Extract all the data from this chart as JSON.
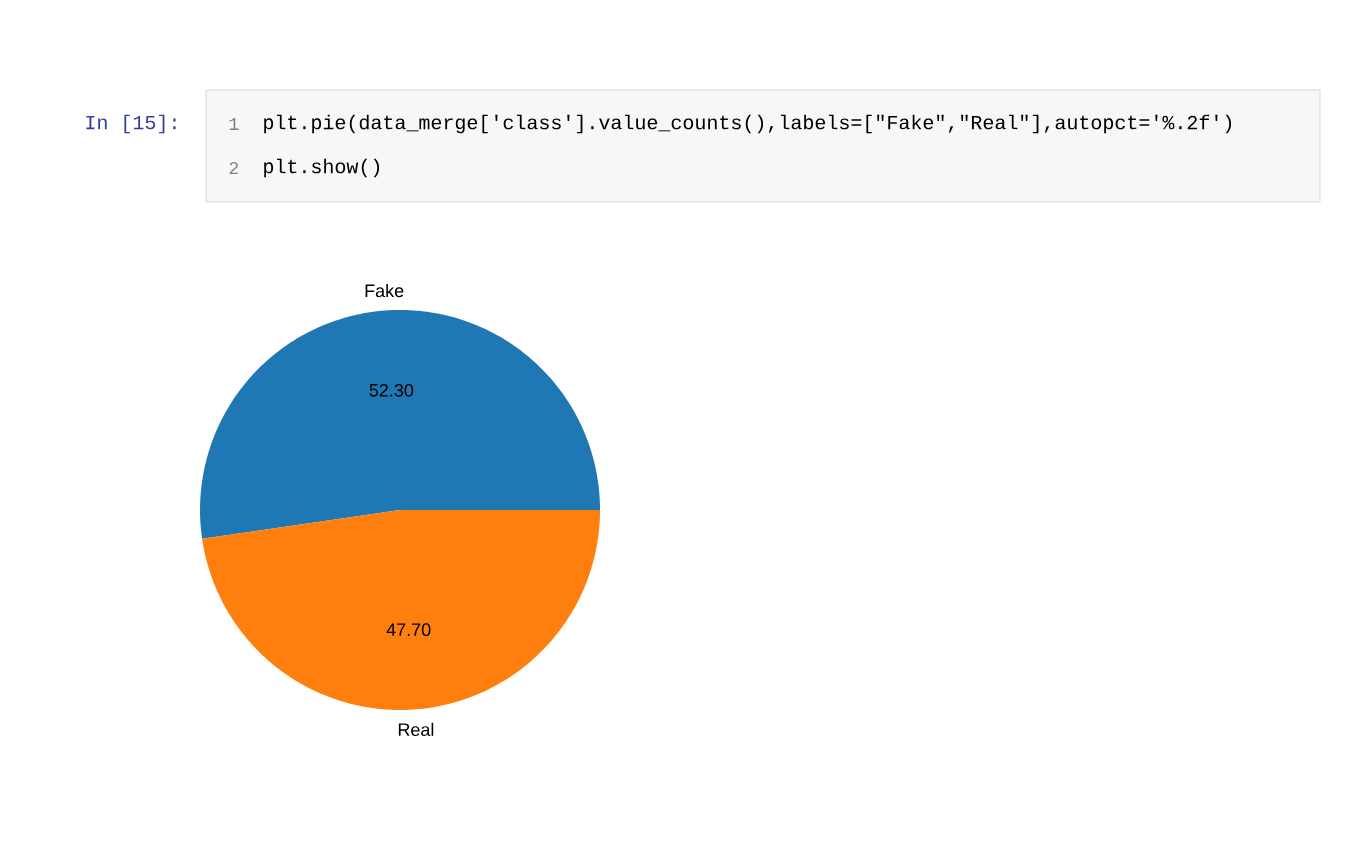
{
  "chart_data": {
    "type": "pie",
    "categories": [
      "Fake",
      "Real"
    ],
    "values": [
      52.3,
      47.7
    ],
    "value_labels": [
      "52.30",
      "47.70"
    ],
    "colors": [
      "#1f77b4",
      "#ff7f0e"
    ],
    "annotations": [
      "In [15]:",
      "1",
      "plt.pie(data_merge['class'].value_counts(),labels=[\"Fake\",\"Real\"],autopct='%.2f')",
      "2",
      "plt.show()"
    ]
  }
}
